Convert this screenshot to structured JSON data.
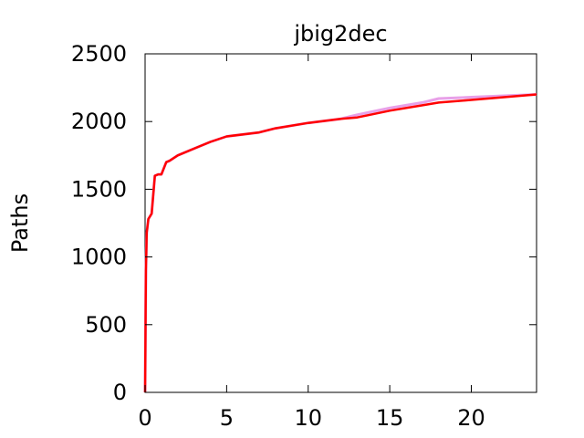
{
  "chart_data": {
    "type": "line",
    "title": "jbig2dec",
    "xlabel": "",
    "ylabel": "Paths",
    "xlim": [
      0,
      24
    ],
    "ylim": [
      0,
      2500
    ],
    "xticks": [
      0,
      5,
      10,
      15,
      20
    ],
    "xtick_labels": [
      "0",
      "5",
      "10",
      "15",
      "20"
    ],
    "yticks": [
      0,
      500,
      1000,
      1500,
      2000,
      2500
    ],
    "ytick_labels": [
      "0",
      "500",
      "1000",
      "1500",
      "2000",
      "2500"
    ],
    "grid": false,
    "legend": "none",
    "series": [
      {
        "color": "#e8a0e8",
        "x": [
          0,
          0.05,
          0.1,
          0.2,
          0.4,
          0.6,
          0.8,
          1.0,
          1.3,
          1.5,
          2.0,
          3.0,
          4.0,
          5.0,
          7.0,
          8.0,
          10.0,
          12.0,
          13.0,
          15.0,
          17.0,
          18.0,
          20.0,
          22.0,
          24.0
        ],
        "y": [
          0,
          900,
          1180,
          1280,
          1320,
          1600,
          1610,
          1610,
          1700,
          1710,
          1750,
          1800,
          1850,
          1890,
          1920,
          1950,
          1990,
          2020,
          2050,
          2100,
          2140,
          2170,
          2180,
          2190,
          2200
        ]
      },
      {
        "color": "#ff0000",
        "x": [
          0,
          0.05,
          0.1,
          0.2,
          0.4,
          0.6,
          0.8,
          1.0,
          1.3,
          1.5,
          2.0,
          3.0,
          4.0,
          5.0,
          7.0,
          8.0,
          10.0,
          12.0,
          13.0,
          15.0,
          17.0,
          18.0,
          20.0,
          22.0,
          24.0
        ],
        "y": [
          0,
          900,
          1180,
          1280,
          1320,
          1600,
          1610,
          1610,
          1700,
          1710,
          1750,
          1800,
          1850,
          1890,
          1920,
          1950,
          1990,
          2020,
          2030,
          2080,
          2120,
          2140,
          2160,
          2180,
          2200
        ]
      }
    ]
  }
}
